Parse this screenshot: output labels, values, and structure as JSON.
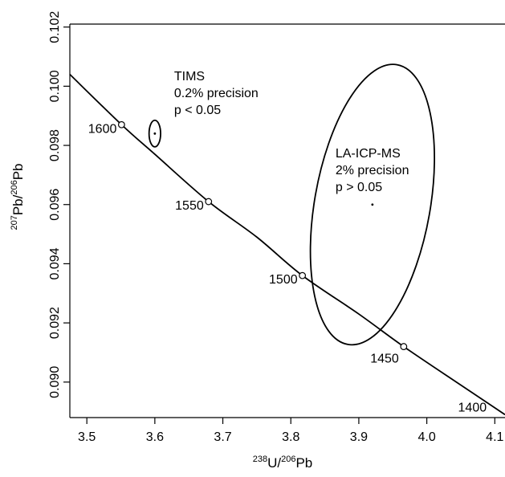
{
  "chart_data": {
    "type": "scatter",
    "xlabel": {
      "sup1": "238",
      "mid": "U/",
      "sup2": "206",
      "tail": "Pb"
    },
    "ylabel": {
      "sup1": "207",
      "mid": "Pb/",
      "sup2": "206",
      "tail": "Pb"
    },
    "xlim": [
      3.475,
      4.115
    ],
    "ylim": [
      0.0888,
      0.1021
    ],
    "xticks": [
      {
        "value": 3.5,
        "label": "3.5"
      },
      {
        "value": 3.6,
        "label": "3.6"
      },
      {
        "value": 3.7,
        "label": "3.7"
      },
      {
        "value": 3.8,
        "label": "3.8"
      },
      {
        "value": 3.9,
        "label": "3.9"
      },
      {
        "value": 4.0,
        "label": "4.0"
      },
      {
        "value": 4.1,
        "label": "4.1"
      }
    ],
    "yticks": [
      {
        "value": 0.09,
        "label": "0.090"
      },
      {
        "value": 0.092,
        "label": "0.092"
      },
      {
        "value": 0.094,
        "label": "0.094"
      },
      {
        "value": 0.096,
        "label": "0.096"
      },
      {
        "value": 0.098,
        "label": "0.098"
      },
      {
        "value": 0.1,
        "label": "0.100"
      },
      {
        "value": 0.102,
        "label": "0.102"
      }
    ],
    "concordia_curve": [
      [
        3.475,
        0.1004
      ],
      [
        3.551,
        0.0987
      ],
      [
        3.6,
        0.0977
      ],
      [
        3.679,
        0.0961
      ],
      [
        3.75,
        0.0949
      ],
      [
        3.817,
        0.0936
      ],
      [
        3.9,
        0.0923
      ],
      [
        3.966,
        0.0912
      ],
      [
        4.05,
        0.0899
      ],
      [
        4.115,
        0.0889
      ]
    ],
    "age_markers": [
      {
        "label": "1600",
        "x": 3.551,
        "y": 0.0987,
        "anchor": "end",
        "dx": -6,
        "dy": 10
      },
      {
        "label": "1550",
        "x": 3.679,
        "y": 0.0961,
        "anchor": "end",
        "dx": -6,
        "dy": 10
      },
      {
        "label": "1500",
        "x": 3.817,
        "y": 0.0936,
        "anchor": "end",
        "dx": -6,
        "dy": 10
      },
      {
        "label": "1450",
        "x": 3.966,
        "y": 0.0912,
        "anchor": "end",
        "dx": -6,
        "dy": 20
      },
      {
        "label": "1400",
        "x": 4.088,
        "y": 0.089,
        "anchor": "end",
        "dx": 0,
        "dy": 0,
        "text_only": true
      }
    ],
    "ellipses": [
      {
        "name": "TIMS",
        "cx": 3.6,
        "cy": 0.0984,
        "rx": 0.0085,
        "ry": 0.00045,
        "center_dot": true,
        "annotation": [
          "TIMS",
          "0.2% precision",
          "p < 0.05"
        ]
      },
      {
        "name": "LA-ICP-MS",
        "cx": 3.92,
        "cy": 0.096,
        "rx": 0.085,
        "ry": 0.0048,
        "rotation": 10,
        "center_dot": true,
        "annotation": [
          "LA-ICP-MS",
          "2% precision",
          "p > 0.05"
        ]
      }
    ],
    "grid": false,
    "legend": "none"
  }
}
